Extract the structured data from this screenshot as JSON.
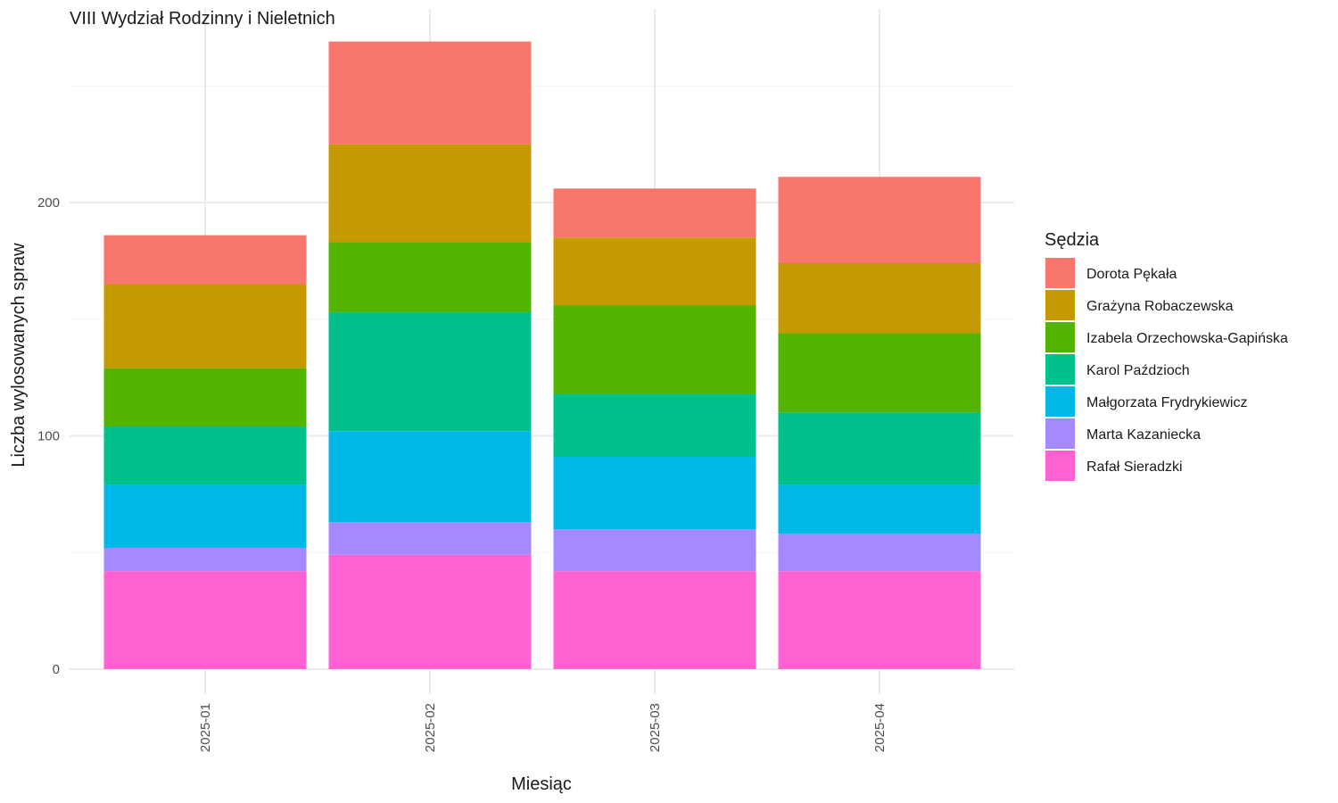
{
  "chart_data": {
    "type": "bar",
    "stacked": true,
    "title": "VIII Wydział Rodzinny i Nieletnich",
    "xlabel": "Miesiąc",
    "ylabel": "Liczba wylosowanych spraw",
    "categories": [
      "2025-01",
      "2025-02",
      "2025-03",
      "2025-04"
    ],
    "ylim": [
      0,
      280
    ],
    "yticks": [
      0,
      100,
      200
    ],
    "grid": true,
    "legend": {
      "title": "Sędzia",
      "position": "right"
    },
    "series": [
      {
        "name": "Rafał Sieradzki",
        "color": "#FF61D2",
        "values": [
          42,
          49,
          42,
          42
        ]
      },
      {
        "name": "Marta Kazaniecka",
        "color": "#A58AFF",
        "values": [
          10,
          14,
          18,
          16
        ]
      },
      {
        "name": "Małgorzata Frydrykiewicz",
        "color": "#00B8E7",
        "values": [
          27,
          39,
          31,
          21
        ]
      },
      {
        "name": "Karol Paździoch",
        "color": "#00C08B",
        "values": [
          25,
          51,
          27,
          31
        ]
      },
      {
        "name": "Izabela Orzechowska-Gapińska",
        "color": "#53B400",
        "values": [
          25,
          30,
          38,
          34
        ]
      },
      {
        "name": "Grażyna Robaczewska",
        "color": "#C49A00",
        "values": [
          36,
          42,
          29,
          30
        ]
      },
      {
        "name": "Dorota Pękała",
        "color": "#F8766D",
        "values": [
          21,
          44,
          21,
          37
        ]
      }
    ],
    "legend_order": [
      "Dorota Pękała",
      "Grażyna Robaczewska",
      "Izabela Orzechowska-Gapińska",
      "Karol Paździoch",
      "Małgorzata Frydrykiewicz",
      "Marta Kazaniecka",
      "Rafał Sieradzki"
    ]
  }
}
